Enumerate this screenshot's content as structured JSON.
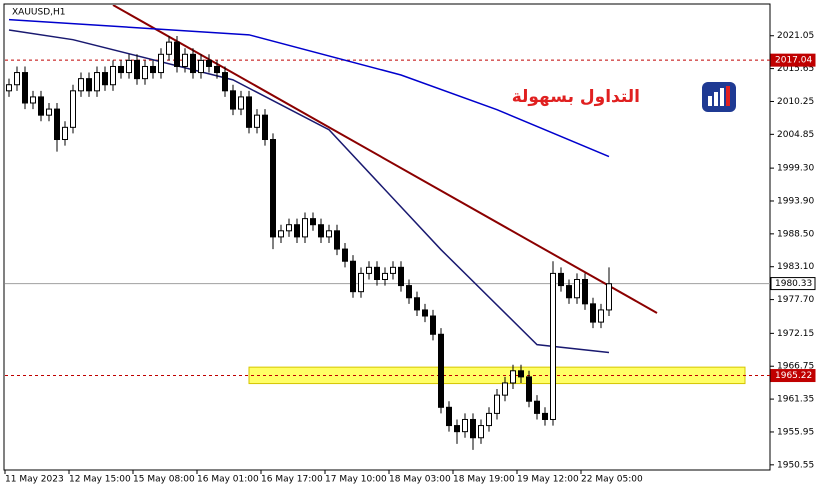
{
  "chart_data": {
    "type": "candlestick",
    "title": "XAUUSD,H1",
    "brand": "التداول بسهولة",
    "categories": [
      "11 May 2023",
      null,
      null,
      null,
      null,
      null,
      null,
      null,
      "12 May 15:00",
      null,
      null,
      null,
      null,
      null,
      null,
      null,
      "15 May 08:00",
      null,
      null,
      null,
      null,
      null,
      null,
      null,
      "16 May 01:00",
      null,
      null,
      null,
      null,
      null,
      null,
      null,
      "16 May 17:00",
      null,
      null,
      null,
      null,
      null,
      null,
      null,
      "17 May 10:00",
      null,
      null,
      null,
      null,
      null,
      null,
      null,
      "18 May 03:00",
      null,
      null,
      null,
      null,
      null,
      null,
      null,
      "18 May 19:00",
      null,
      null,
      null,
      null,
      null,
      null,
      null,
      "19 May 12:00",
      null,
      null,
      null,
      null,
      null,
      null,
      null,
      "22 May 05:00",
      null,
      null,
      null
    ],
    "open": [
      2012,
      2013,
      2015,
      2010,
      2011,
      2008,
      2009,
      2004,
      2006,
      2012,
      2014,
      2012,
      2015,
      2013,
      2016,
      2015,
      2017,
      2014,
      2016,
      2015,
      2018,
      2020,
      2016,
      2018,
      2015,
      2017,
      2016,
      2015,
      2012,
      2009,
      2011,
      2006,
      2008,
      2004,
      1988,
      1989,
      1990,
      1988,
      1991,
      1990,
      1988,
      1989,
      1986,
      1984,
      1979,
      1982,
      1983,
      1981,
      1982,
      1983,
      1980,
      1978,
      1976,
      1975,
      1972,
      1960,
      1957,
      1956,
      1958,
      1955,
      1957,
      1959,
      1962,
      1964,
      1966,
      1965,
      1961,
      1959,
      1958,
      1982,
      1980,
      1978,
      1981,
      1977,
      1974,
      1976
    ],
    "high": [
      2014,
      2016,
      2016,
      2012,
      2012,
      2010,
      2010,
      2007,
      2013,
      2015,
      2015,
      2016,
      2016,
      2017,
      2017,
      2018,
      2018,
      2017,
      2017,
      2019,
      2021,
      2021,
      2019,
      2019,
      2018,
      2018,
      2017,
      2016,
      2013,
      2012,
      2012,
      2009,
      2009,
      2005,
      1990,
      1991,
      1991,
      1992,
      1992,
      1991,
      1990,
      1990,
      1987,
      1985,
      1983,
      1984,
      1984,
      1983,
      1984,
      1984,
      1981,
      1979,
      1977,
      1976,
      1973,
      1961,
      1958,
      1959,
      1959,
      1958,
      1960,
      1963,
      1965,
      1967,
      1967,
      1966,
      1962,
      1960,
      1984,
      1983,
      1981,
      1982,
      1982,
      1978,
      1977,
      1983
    ],
    "low": [
      2011,
      2012,
      2009,
      2009,
      2007,
      2007,
      2002,
      2003,
      2005,
      2011,
      2011,
      2011,
      2012,
      2012,
      2014,
      2014,
      2013,
      2013,
      2014,
      2014,
      2017,
      2015,
      2015,
      2014,
      2014,
      2015,
      2014,
      2011,
      2008,
      2008,
      2005,
      2005,
      2003,
      1986,
      1987,
      1988,
      1987,
      1987,
      1989,
      1987,
      1987,
      1985,
      1983,
      1978,
      1978,
      1981,
      1980,
      1980,
      1981,
      1979,
      1977,
      1975,
      1974,
      1971,
      1959,
      1956,
      1954,
      1955,
      1953,
      1954,
      1956,
      1958,
      1961,
      1963,
      1964,
      1960,
      1958,
      1957,
      1957,
      1979,
      1977,
      1977,
      1976,
      1973,
      1973,
      1975
    ],
    "close": [
      2013,
      2015,
      2010,
      2011,
      2008,
      2009,
      2004,
      2006,
      2012,
      2014,
      2012,
      2015,
      2013,
      2016,
      2015,
      2017,
      2014,
      2016,
      2015,
      2018,
      2020,
      2016,
      2018,
      2015,
      2017,
      2016,
      2015,
      2012,
      2009,
      2011,
      2006,
      2008,
      2004,
      1988,
      1989,
      1990,
      1988,
      1991,
      1990,
      1988,
      1989,
      1986,
      1984,
      1979,
      1982,
      1983,
      1981,
      1982,
      1983,
      1980,
      1978,
      1976,
      1975,
      1972,
      1960,
      1957,
      1956,
      1958,
      1955,
      1957,
      1959,
      1962,
      1964,
      1966,
      1965,
      1961,
      1959,
      1958,
      1982,
      1980,
      1978,
      1981,
      1977,
      1974,
      1976,
      1980.3
    ],
    "up_color": "#ffffff",
    "down_color": "#000000",
    "overlays": [
      {
        "color": "#8b0000",
        "x": [
          13,
          81
        ],
        "values": [
          2026.1,
          1975.5
        ]
      },
      {
        "color": "#0000cd",
        "x": [
          0,
          30,
          49,
          61,
          75
        ],
        "values": [
          2023.7,
          2021.2,
          2014.6,
          2008.9,
          2001.2
        ]
      },
      {
        "color": "#191970",
        "x": [
          0,
          8,
          28,
          40,
          54,
          66,
          75
        ],
        "values": [
          2022,
          2020.4,
          2013.8,
          2005.6,
          1985.9,
          1970.3,
          1969
        ]
      }
    ],
    "zone": {
      "x": [
        30,
        92
      ],
      "values": [
        1963.9,
        1966.6
      ],
      "color": "#ffff66"
    },
    "levels": [
      {
        "value": 2017.04,
        "color": "#c00000"
      },
      {
        "value": 1965.22,
        "color": "#c00000"
      },
      {
        "value": 1980.33,
        "color": "#a0a0a0"
      }
    ],
    "ylim": [
      1949.7,
      2026.1
    ],
    "yticks": [
      2021.05,
      2015.65,
      2010.25,
      2004.85,
      {
        "value": 1999.3,
        "label": "1999.30"
      },
      {
        "value": 1993.9,
        "label": "1993.90"
      },
      {
        "value": 1988.5,
        "label": "1988.50"
      },
      {
        "value": 1983.1,
        "label": "1983.10"
      },
      {
        "value": 1977.7,
        "label": "1977.70"
      },
      1972.15,
      1966.75,
      1961.35,
      1955.95,
      1950.55
    ]
  }
}
